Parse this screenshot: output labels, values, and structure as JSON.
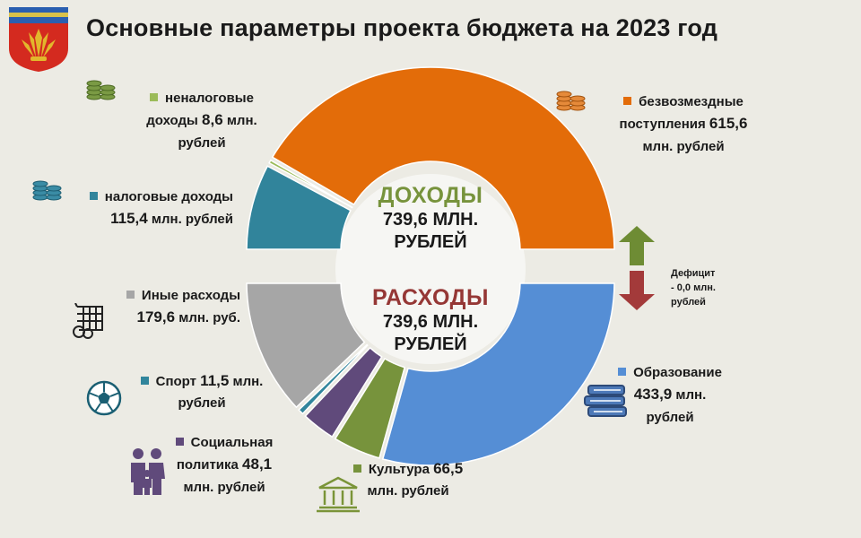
{
  "title": "Основные параметры проекта бюджета на 2023 год",
  "colors": {
    "background": "#ecebe4",
    "income_head": "#77933c",
    "expense_head": "#953735",
    "arrow_up": "#6e8c34",
    "arrow_down": "#a33a3a"
  },
  "center": {
    "income_head": "ДОХОДЫ",
    "income_value_line1": "739,6 МЛН.",
    "income_value_line2": "РУБЛЕЙ",
    "expense_head": "РАСХОДЫ",
    "expense_value_line1": "739,6 МЛН.",
    "expense_value_line2": "РУБЛЕЙ"
  },
  "deficit": {
    "line1": "Дефицит",
    "line2": "- 0,0 млн.",
    "line3": "рублей"
  },
  "icons": [
    "coins-icon",
    "coins-icon",
    "coins-icon",
    "shopping-icon",
    "soccer-ball-icon",
    "family-icon",
    "museum-icon",
    "books-icon",
    "arrow-up-icon",
    "arrow-down-icon",
    "emblem-icon"
  ],
  "labels": {
    "nonTax": {
      "l1": "неналоговые",
      "l2a": "доходы ",
      "l2b": "8,6",
      "l2c": " млн.",
      "l3": "рублей"
    },
    "tax": {
      "l1": "налоговые доходы",
      "l2a": "115,4",
      "l2b": " млн. рублей"
    },
    "grants": {
      "l1": "безвозмездные",
      "l2a": "поступления ",
      "l2b": "615,6",
      "l3": "млн. рублей"
    },
    "other": {
      "l1": "Иные расходы",
      "l2a": "179,6",
      "l2b": " млн. руб."
    },
    "sport": {
      "l1a": "Спорт ",
      "l1b": "11,5",
      "l1c": " млн.",
      "l2": "рублей"
    },
    "social": {
      "l1": "Социальная",
      "l2a": "политика ",
      "l2b": "48,1",
      "l3": "млн. рублей"
    },
    "culture": {
      "l1a": "Культура ",
      "l1b": "66,5",
      "l2": "млн. рублей"
    },
    "education": {
      "l1": "Образование",
      "l2a": "433,9",
      "l2b": " млн.",
      "l3": "рублей"
    }
  },
  "chart_data": {
    "type": "donut",
    "title": "Основные параметры проекта бюджета на 2023 год",
    "income": {
      "name": "ДОХОДЫ",
      "total": 739.6,
      "unit": "млн. рублей",
      "slices": [
        {
          "name": "налоговые доходы",
          "value": 115.4,
          "color": "#31849b"
        },
        {
          "name": "неналоговые доходы",
          "value": 8.6,
          "color": "#9bbb59"
        },
        {
          "name": "безвозмездные поступления",
          "value": 615.6,
          "color": "#e36c09"
        }
      ]
    },
    "expenses": {
      "name": "РАСХОДЫ",
      "total": 739.6,
      "unit": "млн. рублей",
      "slices": [
        {
          "name": "Образование",
          "value": 433.9,
          "color": "#558ed5"
        },
        {
          "name": "Культура",
          "value": 66.5,
          "color": "#77933c"
        },
        {
          "name": "Социальная политика",
          "value": 48.1,
          "color": "#604a7b"
        },
        {
          "name": "Спорт",
          "value": 11.5,
          "color": "#31859c"
        },
        {
          "name": "Иные расходы",
          "value": 179.6,
          "color": "#a6a6a6"
        }
      ]
    },
    "deficit": 0.0
  }
}
